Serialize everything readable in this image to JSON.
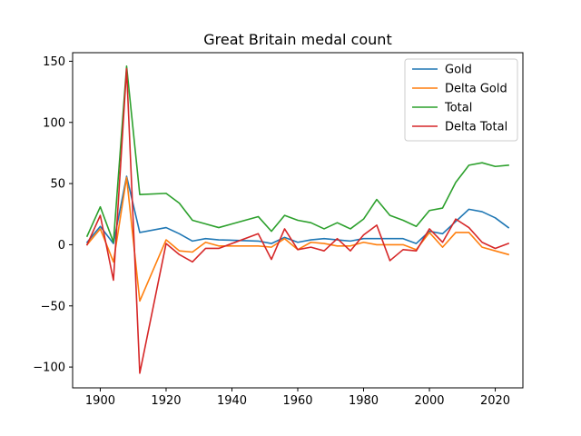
{
  "chart_data": {
    "type": "line",
    "title": "Great Britain medal count",
    "xlabel": "",
    "ylabel": "",
    "xlim": [
      1891.6,
      2028.4
    ],
    "ylim": [
      -117,
      157
    ],
    "xticks": [
      1900,
      1920,
      1940,
      1960,
      1980,
      2000,
      2020
    ],
    "yticks": [
      -100,
      -50,
      0,
      50,
      100,
      150
    ],
    "legend_position": "top-right",
    "grid": false,
    "x": [
      1896,
      1900,
      1904,
      1908,
      1912,
      1920,
      1924,
      1928,
      1932,
      1936,
      1948,
      1952,
      1956,
      1960,
      1964,
      1968,
      1972,
      1976,
      1980,
      1984,
      1988,
      1992,
      1996,
      2000,
      2004,
      2008,
      2012,
      2016,
      2020,
      2024
    ],
    "series": [
      {
        "name": "Gold",
        "color": "#1f77b4",
        "values": [
          2,
          15,
          1,
          56,
          10,
          14,
          9,
          3,
          5,
          4,
          3,
          1,
          6,
          2,
          4,
          5,
          4,
          3,
          5,
          5,
          5,
          5,
          1,
          11,
          9,
          19,
          29,
          27,
          22,
          14
        ]
      },
      {
        "name": "Delta Gold",
        "color": "#ff7f0e",
        "values": [
          0,
          13,
          -14,
          55,
          -46,
          4,
          -5,
          -6,
          2,
          -1,
          -1,
          -2,
          5,
          -4,
          2,
          1,
          -1,
          -1,
          2,
          0,
          0,
          0,
          -4,
          10,
          -2,
          10,
          10,
          -2,
          -5,
          -8
        ]
      },
      {
        "name": "Total",
        "color": "#2ca02c",
        "values": [
          7,
          31,
          2,
          146,
          41,
          42,
          34,
          20,
          17,
          14,
          23,
          11,
          24,
          20,
          18,
          13,
          18,
          13,
          21,
          37,
          24,
          20,
          15,
          28,
          30,
          51,
          65,
          67,
          64,
          65
        ]
      },
      {
        "name": "Delta Total",
        "color": "#d62728",
        "values": [
          0,
          24,
          -29,
          144,
          -105,
          1,
          -8,
          -14,
          -3,
          -3,
          9,
          -12,
          13,
          -4,
          -2,
          -5,
          5,
          -5,
          8,
          16,
          -13,
          -4,
          -5,
          13,
          2,
          21,
          14,
          2,
          -3,
          1
        ]
      }
    ]
  }
}
